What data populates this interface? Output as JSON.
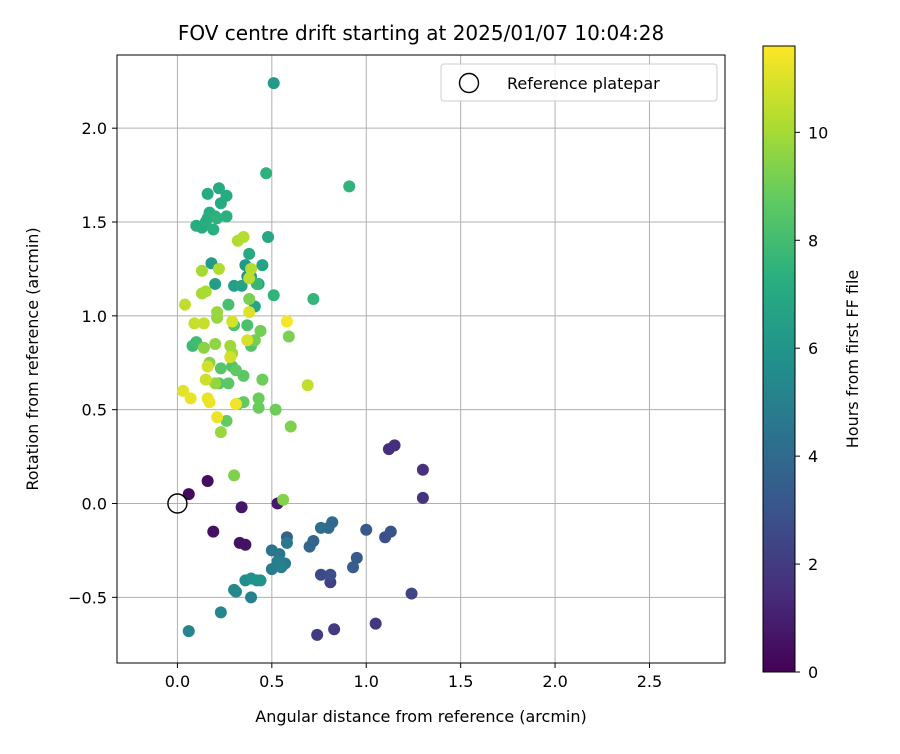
{
  "chart_data": {
    "type": "scatter",
    "title": "FOV centre drift starting at 2025/01/07 10:04:28",
    "xlabel": "Angular distance from reference (arcmin)",
    "ylabel": "Rotation from reference (arcmin)",
    "xlim": [
      -0.32,
      2.9
    ],
    "ylim": [
      -0.85,
      2.39
    ],
    "x_ticks": [
      "0.0",
      "0.5",
      "1.0",
      "1.5",
      "2.0",
      "2.5"
    ],
    "y_ticks": [
      "−0.5",
      "0.0",
      "0.5",
      "1.0",
      "1.5",
      "2.0"
    ],
    "x_tick_values": [
      0,
      0.5,
      1.0,
      1.5,
      2.0,
      2.5
    ],
    "y_tick_values": [
      -0.5,
      0,
      0.5,
      1.0,
      1.5,
      2.0
    ],
    "grid": true,
    "legend": {
      "position": "top-right",
      "entries": [
        "Reference platepar"
      ]
    },
    "reference_point": {
      "x": 0,
      "y": 0
    },
    "colorbar": {
      "label": "Hours from first FF file",
      "range": [
        0,
        11.6
      ],
      "ticks": [
        "0",
        "2",
        "4",
        "6",
        "8",
        "10"
      ],
      "tick_values": [
        0,
        2,
        4,
        6,
        8,
        10
      ],
      "colormap": "viridis"
    },
    "points": [
      {
        "x": 0.06,
        "y": 0.05,
        "h": 0.3
      },
      {
        "x": 0.16,
        "y": 0.12,
        "h": 0.4
      },
      {
        "x": 0.19,
        "y": -0.15,
        "h": 0.5
      },
      {
        "x": 0.33,
        "y": -0.21,
        "h": 0.6
      },
      {
        "x": 0.36,
        "y": -0.22,
        "h": 0.6
      },
      {
        "x": 0.34,
        "y": -0.02,
        "h": 0.7
      },
      {
        "x": 0.53,
        "y": 0.0,
        "h": 0.8
      },
      {
        "x": 1.12,
        "y": 0.29,
        "h": 1.5
      },
      {
        "x": 1.15,
        "y": 0.31,
        "h": 1.5
      },
      {
        "x": 1.3,
        "y": 0.18,
        "h": 1.6
      },
      {
        "x": 1.3,
        "y": 0.03,
        "h": 1.7
      },
      {
        "x": 1.05,
        "y": -0.64,
        "h": 1.9
      },
      {
        "x": 0.74,
        "y": -0.7,
        "h": 2.0
      },
      {
        "x": 0.83,
        "y": -0.67,
        "h": 2.0
      },
      {
        "x": 0.81,
        "y": -0.42,
        "h": 2.2
      },
      {
        "x": 1.24,
        "y": -0.48,
        "h": 2.4
      },
      {
        "x": 0.76,
        "y": -0.38,
        "h": 2.6
      },
      {
        "x": 0.81,
        "y": -0.38,
        "h": 2.8
      },
      {
        "x": 1.1,
        "y": -0.18,
        "h": 2.8
      },
      {
        "x": 1.13,
        "y": -0.15,
        "h": 3.0
      },
      {
        "x": 1.0,
        "y": -0.14,
        "h": 3.2
      },
      {
        "x": 0.95,
        "y": -0.29,
        "h": 3.3
      },
      {
        "x": 0.93,
        "y": -0.34,
        "h": 3.4
      },
      {
        "x": 0.58,
        "y": -0.18,
        "h": 3.6
      },
      {
        "x": 0.72,
        "y": -0.2,
        "h": 3.7
      },
      {
        "x": 0.7,
        "y": -0.23,
        "h": 3.8
      },
      {
        "x": 0.82,
        "y": -0.1,
        "h": 3.9
      },
      {
        "x": 0.8,
        "y": -0.13,
        "h": 4.0
      },
      {
        "x": 0.76,
        "y": -0.13,
        "h": 4.2
      },
      {
        "x": 0.5,
        "y": -0.25,
        "h": 4.4
      },
      {
        "x": 0.54,
        "y": -0.27,
        "h": 4.5
      },
      {
        "x": 0.58,
        "y": -0.21,
        "h": 4.6
      },
      {
        "x": 0.57,
        "y": -0.32,
        "h": 4.7
      },
      {
        "x": 0.5,
        "y": -0.35,
        "h": 4.8
      },
      {
        "x": 0.53,
        "y": -0.31,
        "h": 4.9
      },
      {
        "x": 0.55,
        "y": -0.34,
        "h": 5.0
      },
      {
        "x": 0.39,
        "y": -0.5,
        "h": 5.0
      },
      {
        "x": 0.06,
        "y": -0.68,
        "h": 5.2
      },
      {
        "x": 0.23,
        "y": -0.58,
        "h": 5.3
      },
      {
        "x": 0.3,
        "y": -0.46,
        "h": 5.4
      },
      {
        "x": 0.31,
        "y": -0.47,
        "h": 5.4
      },
      {
        "x": 0.36,
        "y": -0.41,
        "h": 5.6
      },
      {
        "x": 0.39,
        "y": -0.4,
        "h": 5.7
      },
      {
        "x": 0.42,
        "y": -0.41,
        "h": 5.8
      },
      {
        "x": 0.44,
        "y": -0.41,
        "h": 5.9
      },
      {
        "x": 0.37,
        "y": 1.21,
        "h": 6.0
      },
      {
        "x": 0.36,
        "y": 1.27,
        "h": 6.1
      },
      {
        "x": 0.51,
        "y": 2.24,
        "h": 6.2
      },
      {
        "x": 0.18,
        "y": 1.28,
        "h": 6.3
      },
      {
        "x": 0.2,
        "y": 1.17,
        "h": 6.4
      },
      {
        "x": 0.3,
        "y": 1.16,
        "h": 6.5
      },
      {
        "x": 0.34,
        "y": 1.16,
        "h": 6.6
      },
      {
        "x": 0.39,
        "y": 1.21,
        "h": 6.7
      },
      {
        "x": 0.45,
        "y": 1.27,
        "h": 6.7
      },
      {
        "x": 0.43,
        "y": 1.17,
        "h": 6.8
      },
      {
        "x": 0.41,
        "y": 1.05,
        "h": 6.8
      },
      {
        "x": 0.48,
        "y": 1.42,
        "h": 6.9
      },
      {
        "x": 0.38,
        "y": 1.33,
        "h": 7.0
      },
      {
        "x": 0.16,
        "y": 1.65,
        "h": 7.0
      },
      {
        "x": 0.22,
        "y": 1.68,
        "h": 7.0
      },
      {
        "x": 0.23,
        "y": 1.6,
        "h": 7.0
      },
      {
        "x": 0.26,
        "y": 1.64,
        "h": 7.1
      },
      {
        "x": 0.1,
        "y": 1.48,
        "h": 7.1
      },
      {
        "x": 0.13,
        "y": 1.47,
        "h": 7.1
      },
      {
        "x": 0.15,
        "y": 1.5,
        "h": 7.2
      },
      {
        "x": 0.17,
        "y": 1.55,
        "h": 7.2
      },
      {
        "x": 0.16,
        "y": 1.52,
        "h": 7.2
      },
      {
        "x": 0.2,
        "y": 1.53,
        "h": 7.3
      },
      {
        "x": 0.19,
        "y": 1.46,
        "h": 7.3
      },
      {
        "x": 0.26,
        "y": 1.53,
        "h": 7.3
      },
      {
        "x": 0.21,
        "y": 1.52,
        "h": 7.4
      },
      {
        "x": 0.47,
        "y": 1.76,
        "h": 7.4
      },
      {
        "x": 0.91,
        "y": 1.69,
        "h": 7.5
      },
      {
        "x": 0.51,
        "y": 1.11,
        "h": 7.5
      },
      {
        "x": 0.72,
        "y": 1.09,
        "h": 7.6
      },
      {
        "x": 0.42,
        "y": 1.17,
        "h": 7.7
      },
      {
        "x": 0.08,
        "y": 0.84,
        "h": 7.8
      },
      {
        "x": 0.1,
        "y": 0.86,
        "h": 8.0
      },
      {
        "x": 0.27,
        "y": 1.06,
        "h": 8.1
      },
      {
        "x": 0.37,
        "y": 0.95,
        "h": 8.2
      },
      {
        "x": 0.3,
        "y": 0.95,
        "h": 8.3
      },
      {
        "x": 0.39,
        "y": 0.84,
        "h": 8.4
      },
      {
        "x": 0.29,
        "y": 0.73,
        "h": 8.4
      },
      {
        "x": 0.23,
        "y": 0.72,
        "h": 8.5
      },
      {
        "x": 0.22,
        "y": 0.64,
        "h": 8.5
      },
      {
        "x": 0.27,
        "y": 0.64,
        "h": 8.6
      },
      {
        "x": 0.35,
        "y": 0.68,
        "h": 8.6
      },
      {
        "x": 0.31,
        "y": 0.71,
        "h": 8.7
      },
      {
        "x": 0.32,
        "y": 0.53,
        "h": 8.7
      },
      {
        "x": 0.35,
        "y": 0.54,
        "h": 8.8
      },
      {
        "x": 0.26,
        "y": 0.44,
        "h": 8.8
      },
      {
        "x": 0.43,
        "y": 0.51,
        "h": 8.9
      },
      {
        "x": 0.43,
        "y": 0.56,
        "h": 8.9
      },
      {
        "x": 0.45,
        "y": 0.66,
        "h": 9.0
      },
      {
        "x": 0.52,
        "y": 0.5,
        "h": 9.0
      },
      {
        "x": 0.41,
        "y": 0.87,
        "h": 9.1
      },
      {
        "x": 0.44,
        "y": 0.92,
        "h": 9.1
      },
      {
        "x": 0.59,
        "y": 0.89,
        "h": 9.2
      },
      {
        "x": 0.38,
        "y": 1.09,
        "h": 9.2
      },
      {
        "x": 0.6,
        "y": 0.41,
        "h": 9.3
      },
      {
        "x": 0.3,
        "y": 0.15,
        "h": 9.3
      },
      {
        "x": 0.56,
        "y": 0.02,
        "h": 9.4
      },
      {
        "x": 0.14,
        "y": 0.83,
        "h": 9.5
      },
      {
        "x": 0.17,
        "y": 0.75,
        "h": 9.5
      },
      {
        "x": 0.2,
        "y": 0.85,
        "h": 9.6
      },
      {
        "x": 0.2,
        "y": 0.64,
        "h": 9.7
      },
      {
        "x": 0.21,
        "y": 0.99,
        "h": 9.7
      },
      {
        "x": 0.21,
        "y": 1.02,
        "h": 9.8
      },
      {
        "x": 0.23,
        "y": 0.38,
        "h": 9.8
      },
      {
        "x": 0.29,
        "y": 0.8,
        "h": 9.9
      },
      {
        "x": 0.28,
        "y": 0.84,
        "h": 9.9
      },
      {
        "x": 0.13,
        "y": 1.24,
        "h": 10.0
      },
      {
        "x": 0.13,
        "y": 1.12,
        "h": 10.0
      },
      {
        "x": 0.15,
        "y": 1.13,
        "h": 10.1
      },
      {
        "x": 0.22,
        "y": 1.25,
        "h": 10.2
      },
      {
        "x": 0.32,
        "y": 1.4,
        "h": 10.2
      },
      {
        "x": 0.35,
        "y": 1.42,
        "h": 10.3
      },
      {
        "x": 0.39,
        "y": 1.25,
        "h": 10.3
      },
      {
        "x": 0.38,
        "y": 1.2,
        "h": 10.4
      },
      {
        "x": 0.69,
        "y": 0.63,
        "h": 10.5
      },
      {
        "x": 0.04,
        "y": 1.06,
        "h": 10.5
      },
      {
        "x": 0.09,
        "y": 0.96,
        "h": 10.6
      },
      {
        "x": 0.14,
        "y": 0.96,
        "h": 10.6
      },
      {
        "x": 0.15,
        "y": 0.66,
        "h": 10.7
      },
      {
        "x": 0.16,
        "y": 0.73,
        "h": 10.8
      },
      {
        "x": 0.28,
        "y": 0.78,
        "h": 10.8
      },
      {
        "x": 0.29,
        "y": 0.97,
        "h": 10.9
      },
      {
        "x": 0.37,
        "y": 0.87,
        "h": 10.9
      },
      {
        "x": 0.38,
        "y": 1.02,
        "h": 11.0
      },
      {
        "x": 0.03,
        "y": 0.6,
        "h": 11.1
      },
      {
        "x": 0.07,
        "y": 0.56,
        "h": 11.2
      },
      {
        "x": 0.16,
        "y": 0.56,
        "h": 11.2
      },
      {
        "x": 0.17,
        "y": 0.54,
        "h": 11.3
      },
      {
        "x": 0.21,
        "y": 0.46,
        "h": 11.3
      },
      {
        "x": 0.31,
        "y": 0.53,
        "h": 11.4
      },
      {
        "x": 0.58,
        "y": 0.97,
        "h": 11.5
      }
    ]
  }
}
